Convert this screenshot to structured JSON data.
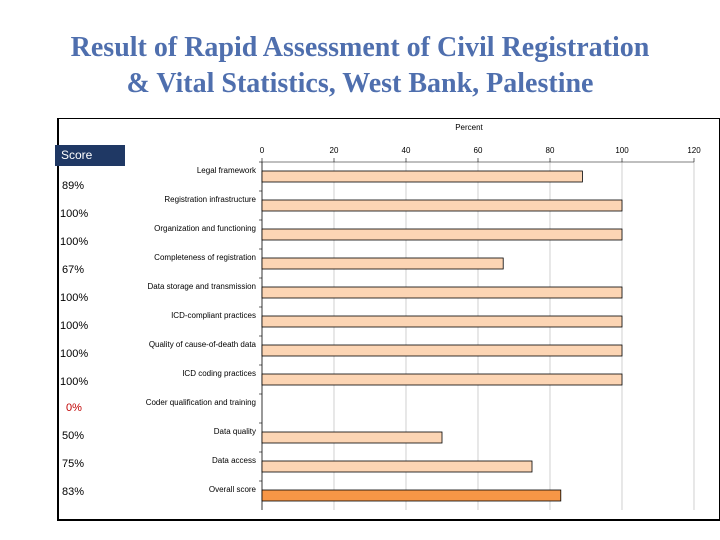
{
  "title": {
    "line1": "Result of Rapid Assessment of Civil Registration",
    "line2": "& Vital Statistics, West Bank, Palestine"
  },
  "score_header": "Score",
  "scores": [
    "89%",
    "100%",
    "100%",
    "67%",
    "100%",
    "100%",
    "100%",
    "100%",
    "0%",
    "50%",
    "75%",
    "83%"
  ],
  "colors": {
    "title": "#4f6fae",
    "bar_fill": "#fcd5b4",
    "bar_overall": "#f79646",
    "score_header_bg": "#1f3864",
    "score_zero": "#c00000"
  },
  "chart_data": {
    "type": "bar",
    "orientation": "horizontal",
    "title": "Percent",
    "xlim": [
      0,
      120
    ],
    "xticks": [
      0,
      20,
      40,
      60,
      80,
      100,
      120
    ],
    "categories": [
      "Legal framework",
      "Registration infrastructure",
      "Organization and functioning",
      "Completeness of registration",
      "Data storage and transmission",
      "ICD-compliant practices",
      "Quality of cause-of-death data",
      "ICD coding practices",
      "Coder qualification and training",
      "Data quality",
      "Data access",
      "Overall score"
    ],
    "values": [
      89,
      100,
      100,
      67,
      100,
      100,
      100,
      100,
      0,
      50,
      75,
      83
    ],
    "highlight": "Overall score",
    "grid": true
  }
}
